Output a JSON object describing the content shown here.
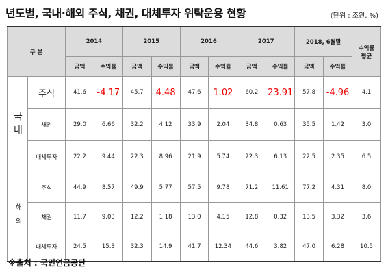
{
  "title": "년도별, 국내·해외 주식, 채권, 대체투자 위탁운용 현황",
  "unit": "(단위 : 조원, %)",
  "table": {
    "corner": "구 분",
    "years": [
      "2014",
      "2015",
      "2016",
      "2017",
      "2018, 6월말"
    ],
    "average_header": [
      "수익률",
      "평균"
    ],
    "subheaders": [
      "금액",
      "수익률"
    ],
    "groups": [
      {
        "region": "국내",
        "rows": [
          {
            "label": "주식",
            "cells": [
              "41.6",
              "-4.17",
              "45.7",
              "4.48",
              "47.6",
              "1.02",
              "60.2",
              "23.91",
              "57.8",
              "-4.96",
              "4.1"
            ]
          },
          {
            "label": "채권",
            "cells": [
              "29.0",
              "6.66",
              "32.2",
              "4.12",
              "33.9",
              "2.04",
              "34.8",
              "0.63",
              "35.5",
              "1.42",
              "3.0"
            ]
          },
          {
            "label": "대체투자",
            "cells": [
              "22.2",
              "9.44",
              "22.3",
              "8.96",
              "21.9",
              "5.74",
              "22.3",
              "6.13",
              "22.5",
              "2.35",
              "6.5"
            ]
          }
        ]
      },
      {
        "region": "해외",
        "rows": [
          {
            "label": "주식",
            "cells": [
              "44.9",
              "8.57",
              "49.9",
              "5.77",
              "57.5",
              "9.78",
              "71.2",
              "11.61",
              "77.2",
              "4.31",
              "8.0"
            ]
          },
          {
            "label": "채권",
            "cells": [
              "11.7",
              "9.03",
              "12.2",
              "1.18",
              "13.0",
              "4.15",
              "12.8",
              "0.32",
              "13.5",
              "3.32",
              "3.6"
            ]
          },
          {
            "label": "대체투자",
            "cells": [
              "24.5",
              "15.3",
              "32.3",
              "14.9",
              "41.7",
              "12.34",
              "44.6",
              "3.82",
              "47.0",
              "6.28",
              "10.5"
            ]
          }
        ]
      }
    ]
  },
  "source": "※출처 : 국민연금공단"
}
